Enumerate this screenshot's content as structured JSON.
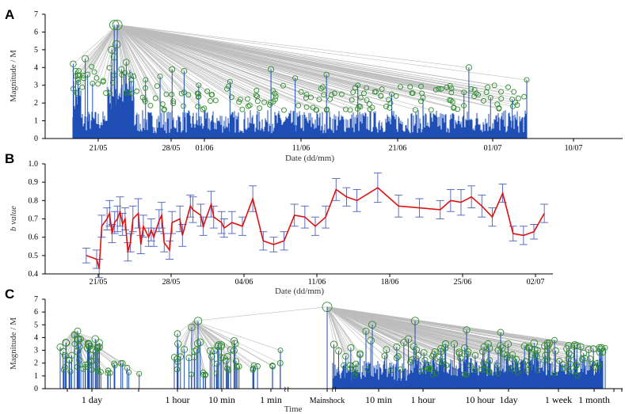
{
  "panels": {
    "a": {
      "label": "A",
      "ylabel": "Magnitude / M",
      "xlabel": "Date (dd/mm)",
      "yticks": [
        "0",
        "1",
        "2",
        "3",
        "4",
        "5",
        "6",
        "7"
      ],
      "xticks": [
        "21/05",
        "28/05",
        "01/06",
        "11/06",
        "21/06",
        "01/07",
        "10/07"
      ]
    },
    "b": {
      "label": "B",
      "ylabel": "b value",
      "xlabel": "Date (dd/mm)",
      "yticks": [
        "0.4",
        "0.5",
        "0.6",
        "0.7",
        "0.8",
        "0.9",
        "1.0"
      ],
      "xticks": [
        "21/05",
        "28/05",
        "04/06",
        "11/06",
        "18/06",
        "25/06",
        "02/07"
      ]
    },
    "c": {
      "label": "C",
      "ylabel": "Magnitude / M",
      "xlabel": "Time",
      "yticks": [
        "0",
        "1",
        "2",
        "3",
        "4",
        "5",
        "6",
        "7"
      ],
      "xticks": [
        "1 day",
        "1 hour",
        "10 min",
        "1 min",
        "Mainshock",
        "10 min",
        "1 hour",
        "10 hour",
        "1day",
        "1 week",
        "1 month"
      ]
    }
  },
  "chart_data": [
    {
      "type": "scatter",
      "title": "",
      "xlabel": "Date (dd/mm)",
      "ylabel": "Magnitude / M",
      "ylim": [
        0,
        7
      ],
      "mainshock": {
        "x": "22/05",
        "y": 6.4
      },
      "points": [
        {
          "x": "18/05",
          "y": 4.2
        },
        {
          "x": "18/05",
          "y": 3.8
        },
        {
          "x": "18/05",
          "y": 3.3
        },
        {
          "x": "18/05",
          "y": 2.8
        },
        {
          "x": "19/05",
          "y": 4.5
        },
        {
          "x": "19/05",
          "y": 3.6
        },
        {
          "x": "20/05",
          "y": 3.1
        },
        {
          "x": "22/05",
          "y": 6.4
        },
        {
          "x": "22/05",
          "y": 5.3
        },
        {
          "x": "22/05",
          "y": 5.0
        },
        {
          "x": "22/05",
          "y": 4.6
        },
        {
          "x": "23/05",
          "y": 4.3
        },
        {
          "x": "23/05",
          "y": 3.9
        },
        {
          "x": "24/05",
          "y": 3.5
        },
        {
          "x": "25/05",
          "y": 3.3
        },
        {
          "x": "27/05",
          "y": 3.5
        },
        {
          "x": "28/05",
          "y": 3.9
        },
        {
          "x": "29/05",
          "y": 3.8
        },
        {
          "x": "31/05",
          "y": 3.0
        },
        {
          "x": "03/06",
          "y": 3.2
        },
        {
          "x": "07/06",
          "y": 3.9
        },
        {
          "x": "10/06",
          "y": 3.4
        },
        {
          "x": "13/06",
          "y": 3.6
        },
        {
          "x": "16/06",
          "y": 3.0
        },
        {
          "x": "20/06",
          "y": 2.5
        },
        {
          "x": "23/06",
          "y": 2.3
        },
        {
          "x": "27/06",
          "y": 2.6
        },
        {
          "x": "28/06",
          "y": 4.0
        },
        {
          "x": "30/06",
          "y": 2.3
        },
        {
          "x": "02/07",
          "y": 2.2
        },
        {
          "x": "04/07",
          "y": 3.3
        }
      ]
    },
    {
      "type": "line",
      "title": "",
      "xlabel": "Date (dd/mm)",
      "ylabel": "b value",
      "ylim": [
        0.4,
        1.0
      ],
      "x": [
        "20/05",
        "21/05",
        "21/05",
        "21/05",
        "22/05",
        "22/05",
        "22/05",
        "22/05",
        "23/05",
        "23/05",
        "23/05",
        "23/05",
        "24/05",
        "24/05",
        "24/05",
        "25/05",
        "25/05",
        "25/05",
        "26/05",
        "26/05",
        "26/05",
        "27/05",
        "27/05",
        "27/05",
        "28/05",
        "28/05",
        "29/05",
        "29/05",
        "30/05",
        "30/05",
        "31/05",
        "31/05",
        "01/06",
        "01/06",
        "02/06",
        "02/06",
        "03/06",
        "04/06",
        "05/06",
        "06/06",
        "07/06",
        "08/06",
        "09/06",
        "10/06",
        "11/06",
        "12/06",
        "13/06",
        "14/06",
        "15/06",
        "17/06",
        "19/06",
        "21/06",
        "23/06",
        "24/06",
        "25/06",
        "26/06",
        "27/06",
        "28/06",
        "29/06",
        "30/06",
        "01/07",
        "02/07",
        "03/07"
      ],
      "series": [
        {
          "values": [
            0.5,
            0.48,
            0.43,
            0.66,
            0.7,
            0.73,
            0.62,
            0.68,
            0.7,
            0.74,
            0.67,
            0.7,
            0.52,
            0.57,
            0.7,
            0.73,
            0.56,
            0.66,
            0.6,
            0.64,
            0.6,
            0.69,
            0.72,
            0.57,
            0.53,
            0.68,
            0.7,
            0.61,
            0.77,
            0.75,
            0.72,
            0.66,
            0.78,
            0.71,
            0.68,
            0.65,
            0.68,
            0.66,
            0.81,
            0.58,
            0.56,
            0.58,
            0.72,
            0.71,
            0.66,
            0.71,
            0.86,
            0.82,
            0.8,
            0.87,
            0.77,
            0.76,
            0.75,
            0.8,
            0.79,
            0.82,
            0.77,
            0.71,
            0.84,
            0.62,
            0.61,
            0.63,
            0.73
          ],
          "err": [
            0.04,
            0.05,
            0.05,
            0.06,
            0.06,
            0.07,
            0.05,
            0.06,
            0.07,
            0.08,
            0.06,
            0.06,
            0.05,
            0.05,
            0.07,
            0.08,
            0.05,
            0.06,
            0.05,
            0.06,
            0.05,
            0.06,
            0.07,
            0.05,
            0.05,
            0.06,
            0.07,
            0.06,
            0.06,
            0.07,
            0.06,
            0.05,
            0.07,
            0.06,
            0.06,
            0.05,
            0.06,
            0.05,
            0.07,
            0.05,
            0.04,
            0.05,
            0.06,
            0.06,
            0.05,
            0.06,
            0.06,
            0.05,
            0.06,
            0.08,
            0.06,
            0.05,
            0.05,
            0.06,
            0.07,
            0.06,
            0.06,
            0.05,
            0.05,
            0.04,
            0.05,
            0.04,
            0.05
          ]
        }
      ]
    },
    {
      "type": "scatter",
      "title": "",
      "xlabel": "Time",
      "ylabel": "Magnitude / M",
      "ylim": [
        0,
        7
      ],
      "mainshock": {
        "x": "Mainshock",
        "y": 6.4
      },
      "points": [
        {
          "x": "before 1 day",
          "y": 4.2
        },
        {
          "x": "before 1 day",
          "y": 4.5
        },
        {
          "x": "before 1 day",
          "y": 3.9
        },
        {
          "x": "before 1 day",
          "y": 3.5
        },
        {
          "x": "before 1 hour",
          "y": 4.3
        },
        {
          "x": "before 10 min",
          "y": 5.3
        },
        {
          "x": "before 10 min",
          "y": 4.8
        },
        {
          "x": "before 1 min",
          "y": 3.0
        },
        {
          "x": "after 10 min",
          "y": 5.0
        },
        {
          "x": "after 10 min",
          "y": 4.5
        },
        {
          "x": "after 1 hour",
          "y": 5.3
        },
        {
          "x": "after 10 hour",
          "y": 4.6
        },
        {
          "x": "after 1day",
          "y": 4.4
        },
        {
          "x": "after 1 week",
          "y": 3.8
        },
        {
          "x": "after 1 month",
          "y": 3.2
        }
      ]
    }
  ]
}
